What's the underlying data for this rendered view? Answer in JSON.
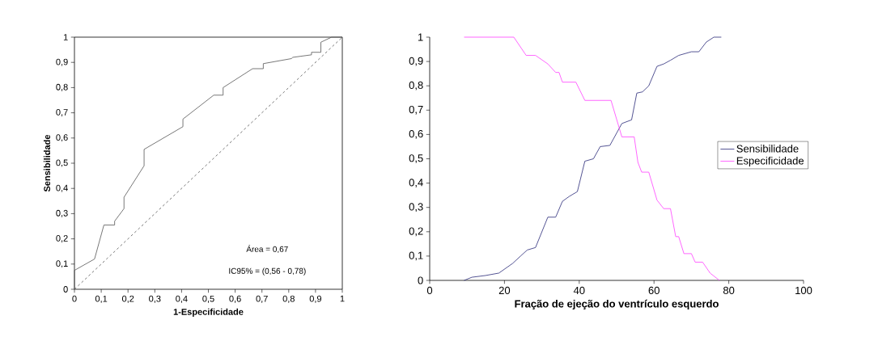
{
  "chart_data": [
    {
      "type": "line",
      "xlabel": "1-Especificidade",
      "ylabel": "Sensibilidade",
      "xlim": [
        0,
        1
      ],
      "ylim": [
        0,
        1
      ],
      "xticks": [
        0,
        {
          "value": 0.1,
          "label": "0,1"
        },
        {
          "value": 0.2,
          "label": "0,2"
        },
        {
          "value": 0.3,
          "label": "0,3"
        },
        {
          "value": 0.4,
          "label": "0,4"
        },
        {
          "value": 0.5,
          "label": "0,5"
        },
        {
          "value": 0.6,
          "label": "0,6"
        },
        {
          "value": 0.7,
          "label": "0,7"
        },
        {
          "value": 0.8,
          "label": "0,8"
        },
        {
          "value": 0.9,
          "label": "0,9"
        },
        1
      ],
      "yticks": [
        0,
        {
          "value": 0.1,
          "label": "0,1"
        },
        {
          "value": 0.2,
          "label": "0,2"
        },
        {
          "value": 0.3,
          "label": "0,3"
        },
        {
          "value": 0.4,
          "label": "0,4"
        },
        {
          "value": 0.5,
          "label": "0,5"
        },
        {
          "value": 0.6,
          "label": "0,6"
        },
        {
          "value": 0.7,
          "label": "0,7"
        },
        {
          "value": 0.8,
          "label": "0,8"
        },
        {
          "value": 0.9,
          "label": "0,9"
        },
        1
      ],
      "annotations": [
        "Área = 0,67",
        "IC95% = (0,56 - 0,78)"
      ],
      "series": [
        {
          "color": "#555555",
          "line_style": "solid",
          "x": [
            0,
            0,
            0.075,
            0.11,
            0.15,
            0.15,
            0.185,
            0.185,
            0.26,
            0.26,
            0.405,
            0.405,
            0.52,
            0.555,
            0.555,
            0.665,
            0.705,
            0.705,
            0.81,
            0.815,
            0.885,
            0.885,
            0.92,
            0.92,
            0.96,
            1
          ],
          "values": [
            0,
            0.075,
            0.12,
            0.255,
            0.255,
            0.27,
            0.32,
            0.365,
            0.49,
            0.555,
            0.645,
            0.675,
            0.77,
            0.77,
            0.8,
            0.875,
            0.875,
            0.895,
            0.915,
            0.92,
            0.93,
            0.94,
            0.94,
            0.98,
            1,
            1
          ]
        },
        {
          "color": "#555555",
          "line_style": "dashed",
          "x": [
            0,
            1
          ],
          "values": [
            0,
            1
          ]
        }
      ]
    },
    {
      "type": "line",
      "xlabel": "Fração de ejeção do ventrículo esquerdo",
      "xlim": [
        0,
        100
      ],
      "ylim": [
        0,
        1
      ],
      "xticks": [
        0,
        20,
        40,
        60,
        80,
        100
      ],
      "yticks": [
        0,
        {
          "value": 0.1,
          "label": "0,1"
        },
        {
          "value": 0.2,
          "label": "0,2"
        },
        {
          "value": 0.3,
          "label": "0,3"
        },
        {
          "value": 0.4,
          "label": "0,4"
        },
        {
          "value": 0.5,
          "label": "0,5"
        },
        {
          "value": 0.6,
          "label": "0,6"
        },
        {
          "value": 0.7,
          "label": "0,7"
        },
        {
          "value": 0.8,
          "label": "0,8"
        },
        {
          "value": 0.9,
          "label": "0,9"
        },
        1
      ],
      "legend": "right",
      "series": [
        {
          "name": "Sensibilidade",
          "color": "#2a2a78",
          "x": [
            9.2,
            11.3,
            14.9,
            18.5,
            22.2,
            24.3,
            26.1,
            28.3,
            31.6,
            33.7,
            35.5,
            37.3,
            39.5,
            41.5,
            43.8,
            45.6,
            48.2,
            51.4,
            54,
            55.4,
            56.9,
            58.6,
            60.8,
            62.6,
            64.4,
            66.6,
            70,
            72,
            74,
            76,
            78
          ],
          "values": [
            0,
            0.013,
            0.02,
            0.03,
            0.07,
            0.1,
            0.125,
            0.135,
            0.26,
            0.26,
            0.325,
            0.345,
            0.365,
            0.49,
            0.5,
            0.55,
            0.555,
            0.645,
            0.66,
            0.77,
            0.775,
            0.8,
            0.88,
            0.89,
            0.905,
            0.925,
            0.94,
            0.94,
            0.98,
            1,
            1
          ]
        },
        {
          "name": "Especificidade",
          "color": "#ff40ff",
          "x": [
            9.2,
            22.5,
            25.8,
            28.3,
            31.6,
            33.7,
            34.6,
            35.5,
            39.1,
            41.5,
            48.5,
            51.4,
            54.7,
            55.7,
            56.7,
            58.6,
            60.8,
            62.6,
            64.4,
            65.8,
            66.6,
            68,
            70,
            71,
            73,
            75,
            77.5
          ],
          "values": [
            1,
            1,
            0.925,
            0.925,
            0.89,
            0.855,
            0.855,
            0.815,
            0.815,
            0.74,
            0.74,
            0.59,
            0.59,
            0.485,
            0.445,
            0.445,
            0.33,
            0.295,
            0.295,
            0.18,
            0.18,
            0.11,
            0.11,
            0.075,
            0.075,
            0.03,
            0
          ]
        }
      ]
    }
  ]
}
